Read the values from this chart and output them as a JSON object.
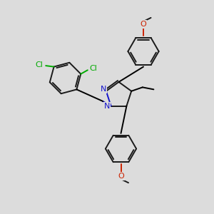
{
  "bg_color": "#dcdcdc",
  "bond_color": "#1a1a1a",
  "n_color": "#1414cc",
  "cl_color": "#00aa00",
  "o_color": "#cc2200",
  "line_width": 1.4,
  "figsize": [
    3.0,
    3.0
  ],
  "dpi": 100,
  "xlim": [
    0,
    10
  ],
  "ylim": [
    0,
    10
  ]
}
